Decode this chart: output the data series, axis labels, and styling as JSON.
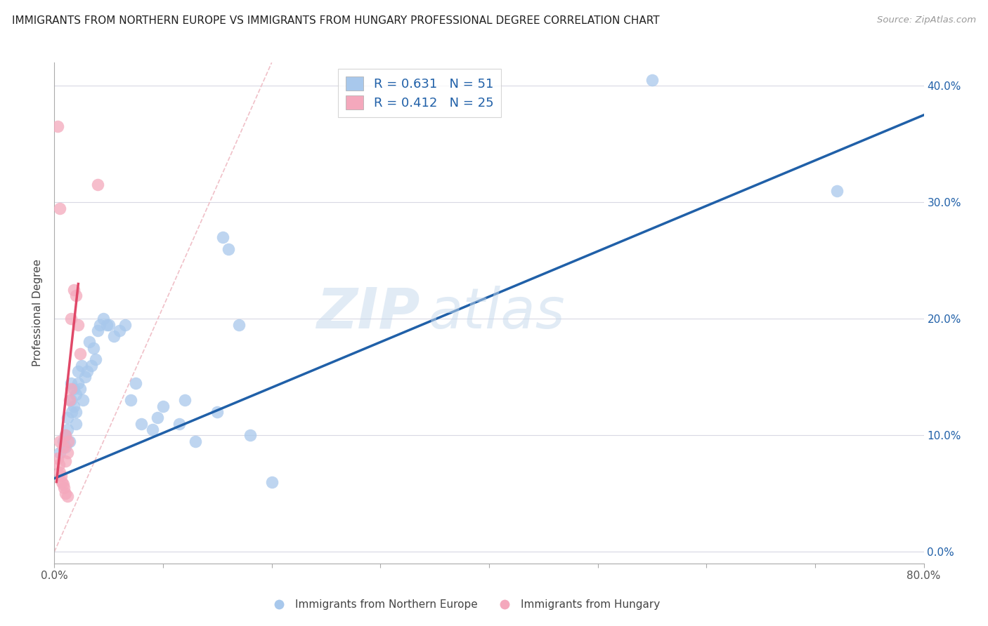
{
  "title": "IMMIGRANTS FROM NORTHERN EUROPE VS IMMIGRANTS FROM HUNGARY PROFESSIONAL DEGREE CORRELATION CHART",
  "source": "Source: ZipAtlas.com",
  "ylabel": "Professional Degree",
  "xlim": [
    0.0,
    0.8
  ],
  "ylim": [
    -0.01,
    0.42
  ],
  "y_ticks_right": [
    0.0,
    0.1,
    0.2,
    0.3,
    0.4
  ],
  "y_tick_labels_right": [
    "0.0%",
    "10.0%",
    "20.0%",
    "30.0%",
    "40.0%"
  ],
  "legend_label_blue": "R = 0.631   N = 51",
  "legend_label_pink": "R = 0.412   N = 25",
  "legend_series_blue": "Immigrants from Northern Europe",
  "legend_series_pink": "Immigrants from Hungary",
  "color_blue": "#A8C8EC",
  "color_pink": "#F4A8BC",
  "color_line_blue": "#2060A8",
  "color_line_pink": "#E04868",
  "color_diag": "#F0C0C8",
  "background": "#FFFFFF",
  "grid_color": "#D8D8E4",
  "blue_scatter_x": [
    0.005,
    0.008,
    0.01,
    0.01,
    0.012,
    0.012,
    0.014,
    0.015,
    0.015,
    0.016,
    0.018,
    0.018,
    0.02,
    0.02,
    0.02,
    0.022,
    0.022,
    0.024,
    0.025,
    0.026,
    0.028,
    0.03,
    0.032,
    0.034,
    0.036,
    0.038,
    0.04,
    0.042,
    0.045,
    0.048,
    0.05,
    0.055,
    0.06,
    0.065,
    0.07,
    0.075,
    0.08,
    0.09,
    0.095,
    0.1,
    0.115,
    0.12,
    0.13,
    0.15,
    0.155,
    0.16,
    0.17,
    0.18,
    0.2,
    0.55,
    0.72
  ],
  "blue_scatter_y": [
    0.085,
    0.095,
    0.09,
    0.1,
    0.105,
    0.115,
    0.095,
    0.13,
    0.145,
    0.12,
    0.125,
    0.14,
    0.11,
    0.12,
    0.135,
    0.145,
    0.155,
    0.14,
    0.16,
    0.13,
    0.15,
    0.155,
    0.18,
    0.16,
    0.175,
    0.165,
    0.19,
    0.195,
    0.2,
    0.195,
    0.195,
    0.185,
    0.19,
    0.195,
    0.13,
    0.145,
    0.11,
    0.105,
    0.115,
    0.125,
    0.11,
    0.13,
    0.095,
    0.12,
    0.27,
    0.26,
    0.195,
    0.1,
    0.06,
    0.405,
    0.31
  ],
  "pink_scatter_x": [
    0.003,
    0.004,
    0.005,
    0.005,
    0.006,
    0.007,
    0.008,
    0.008,
    0.009,
    0.01,
    0.01,
    0.01,
    0.012,
    0.012,
    0.013,
    0.014,
    0.015,
    0.015,
    0.018,
    0.02,
    0.022,
    0.024,
    0.04,
    0.003,
    0.005
  ],
  "pink_scatter_y": [
    0.08,
    0.075,
    0.068,
    0.095,
    0.065,
    0.06,
    0.058,
    0.09,
    0.055,
    0.05,
    0.078,
    0.1,
    0.048,
    0.085,
    0.095,
    0.13,
    0.14,
    0.2,
    0.225,
    0.22,
    0.195,
    0.17,
    0.315,
    0.365,
    0.295
  ],
  "blue_line_x": [
    0.0,
    0.8
  ],
  "blue_line_y": [
    0.063,
    0.375
  ],
  "pink_line_x": [
    0.002,
    0.022
  ],
  "pink_line_y": [
    0.06,
    0.23
  ],
  "diag_line_x": [
    0.0,
    0.2
  ],
  "diag_line_y": [
    0.0,
    0.42
  ],
  "watermark_zip": "ZIP",
  "watermark_atlas": "atlas"
}
